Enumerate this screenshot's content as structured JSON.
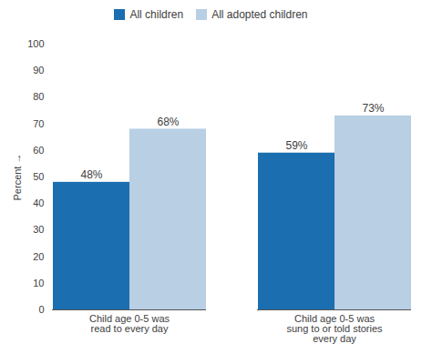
{
  "chart_data": {
    "type": "bar",
    "categories": [
      "Child age 0-5 was\nread to every day",
      "Child age 0-5 was\nsung to or told stories\nevery day"
    ],
    "series": [
      {
        "name": "All children",
        "color": "#1b6eaf",
        "values": [
          48,
          59
        ],
        "value_labels": [
          "48%",
          "59%"
        ]
      },
      {
        "name": "All adopted children",
        "color": "#b8cfe4",
        "values": [
          68,
          73
        ],
        "value_labels": [
          "68%",
          "73%"
        ]
      }
    ],
    "ylabel": "Percent",
    "ylim": [
      0,
      100
    ],
    "yticks": [
      0,
      10,
      20,
      30,
      40,
      50,
      60,
      70,
      80,
      90,
      100
    ],
    "grid": false,
    "legend": "upper center",
    "data_labels": true
  }
}
